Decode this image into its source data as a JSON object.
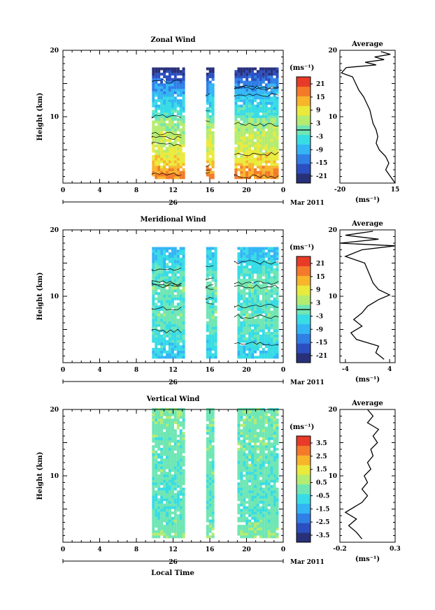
{
  "colors": {
    "scale": [
      "#28307a",
      "#2b4fc0",
      "#2f7fe6",
      "#33b5f5",
      "#37dce5",
      "#6fe6b4",
      "#b4ec70",
      "#eaea3c",
      "#f8b52c",
      "#f47a2a",
      "#e83a28"
    ],
    "missing": "#ffffff",
    "axis": "#000000"
  },
  "shared": {
    "x_ticks": [
      "0",
      "4",
      "8",
      "12",
      "16",
      "20",
      "0"
    ],
    "day_label": "26",
    "month_label": "Mar 2011",
    "y_ticks": [
      "10",
      "20"
    ],
    "ylabel": "Height (km)",
    "xlabel": "Local Time",
    "unit_label": "(ms⁻¹)",
    "average_title": "Average"
  },
  "chart_data": [
    {
      "type": "heatmap",
      "title": "Zonal Wind",
      "x": "local time (h)",
      "xlim": [
        0,
        24
      ],
      "ylim": [
        0,
        20
      ],
      "ylabel": "Height (km)",
      "colorbar_ticks": [
        "21",
        "15",
        "9",
        "3",
        "-3",
        "-9",
        "-15",
        "-21"
      ],
      "colorbar_range": [
        -24,
        24
      ],
      "data_intervals": [
        [
          9.7,
          13.2
        ],
        [
          15.6,
          16.4
        ],
        [
          18.7,
          23.5
        ]
      ],
      "height_range": [
        0.6,
        17.2
      ],
      "values_by_height": [
        [
          1,
          16
        ],
        [
          2,
          14
        ],
        [
          3,
          10
        ],
        [
          5,
          7
        ],
        [
          7,
          5
        ],
        [
          9,
          3
        ],
        [
          10,
          -2
        ],
        [
          12,
          -6
        ],
        [
          14,
          -10
        ],
        [
          16,
          -18
        ],
        [
          17,
          -22
        ]
      ],
      "contour_level": 0,
      "average": {
        "title": "Average",
        "xlim": [
          -20,
          15
        ],
        "xticks": [
          "-20",
          "15"
        ],
        "xlabel": "(ms⁻¹)",
        "profile": [
          [
            15,
            0
          ],
          [
            12,
            1
          ],
          [
            9,
            2
          ],
          [
            11,
            3
          ],
          [
            9,
            4
          ],
          [
            5,
            5
          ],
          [
            3,
            6
          ],
          [
            4,
            7
          ],
          [
            3,
            8
          ],
          [
            1,
            9
          ],
          [
            0,
            10
          ],
          [
            -1,
            11
          ],
          [
            -3,
            12
          ],
          [
            -5,
            13
          ],
          [
            -8,
            14
          ],
          [
            -10,
            15
          ],
          [
            -12,
            16
          ],
          [
            -19,
            16.6
          ],
          [
            -16,
            17.4
          ],
          [
            3,
            17.8
          ],
          [
            -4,
            18.2
          ],
          [
            8,
            18.6
          ],
          [
            2,
            19.0
          ],
          [
            12,
            19.4
          ],
          [
            6,
            19.8
          ]
        ]
      }
    },
    {
      "type": "heatmap",
      "title": "Meridional Wind",
      "x": "local time (h)",
      "xlim": [
        0,
        24
      ],
      "ylim": [
        0,
        20
      ],
      "ylabel": "Height (km)",
      "colorbar_ticks": [
        "21",
        "15",
        "9",
        "3",
        "-3",
        "-9",
        "-15",
        "-21"
      ],
      "colorbar_range": [
        -24,
        24
      ],
      "data_intervals": [
        [
          9.7,
          13.2
        ],
        [
          15.6,
          16.6
        ],
        [
          18.7,
          23.5
        ]
      ],
      "height_range": [
        0.6,
        17.2
      ],
      "values_by_height": [
        [
          1,
          -6
        ],
        [
          3,
          -4
        ],
        [
          5,
          -2
        ],
        [
          7,
          0
        ],
        [
          9,
          -3
        ],
        [
          11,
          1
        ],
        [
          13,
          -2
        ],
        [
          15,
          -5
        ],
        [
          17,
          -8
        ]
      ],
      "contour_level": 0,
      "average": {
        "title": "Average",
        "xlim": [
          -5,
          5
        ],
        "xticks": [
          "-4",
          "4"
        ],
        "xlabel": "(ms⁻¹)",
        "profile": [
          [
            3,
            0.5
          ],
          [
            1.5,
            1.5
          ],
          [
            2,
            2.5
          ],
          [
            -2,
            3.5
          ],
          [
            -3,
            4.5
          ],
          [
            -1,
            5.5
          ],
          [
            -2.5,
            6.5
          ],
          [
            -1,
            7.5
          ],
          [
            0,
            8.5
          ],
          [
            2,
            9.5
          ],
          [
            4,
            10.2
          ],
          [
            2,
            11
          ],
          [
            1,
            12
          ],
          [
            0.5,
            13
          ],
          [
            0,
            14
          ],
          [
            -0.5,
            15
          ],
          [
            -4,
            16
          ],
          [
            -1,
            17
          ],
          [
            5,
            17.6
          ],
          [
            -5,
            18
          ],
          [
            2,
            18.6
          ],
          [
            -4,
            19.2
          ],
          [
            1,
            19.8
          ]
        ]
      }
    },
    {
      "type": "heatmap",
      "title": "Vertical Wind",
      "x": "local time (h)",
      "xlim": [
        0,
        24
      ],
      "ylim": [
        0,
        20
      ],
      "ylabel": "Height (km)",
      "xlabel": "Local Time",
      "colorbar_ticks": [
        "3.5",
        "2.5",
        "1.5",
        "0.5",
        "-0.5",
        "-1.5",
        "-2.5",
        "-3.5"
      ],
      "colorbar_range": [
        -4,
        4
      ],
      "data_intervals": [
        [
          9.7,
          13.2
        ],
        [
          15.6,
          16.4
        ],
        [
          18.7,
          23.5
        ]
      ],
      "height_range": [
        0.6,
        20
      ],
      "values_by_height": [
        [
          1,
          0.2
        ],
        [
          5,
          -0.3
        ],
        [
          10,
          -0.1
        ],
        [
          15,
          0
        ],
        [
          20,
          0.1
        ]
      ],
      "average": {
        "title": "Average",
        "xlim": [
          -0.2,
          0.3
        ],
        "xticks": [
          "-0.2",
          "0.3"
        ],
        "xlabel": "(ms⁻¹)",
        "profile": [
          [
            0.0,
            0.5
          ],
          [
            -0.05,
            1.5
          ],
          [
            -0.12,
            2.5
          ],
          [
            -0.05,
            3.5
          ],
          [
            -0.15,
            4.5
          ],
          [
            0.0,
            6
          ],
          [
            0.05,
            7
          ],
          [
            0.0,
            8
          ],
          [
            0.05,
            9
          ],
          [
            0.02,
            10
          ],
          [
            0.08,
            11
          ],
          [
            0.05,
            12
          ],
          [
            0.1,
            13
          ],
          [
            0.08,
            14
          ],
          [
            0.14,
            15
          ],
          [
            0.1,
            16
          ],
          [
            0.15,
            17
          ],
          [
            0.05,
            18
          ],
          [
            0.1,
            19
          ],
          [
            0.05,
            20
          ]
        ]
      }
    }
  ]
}
